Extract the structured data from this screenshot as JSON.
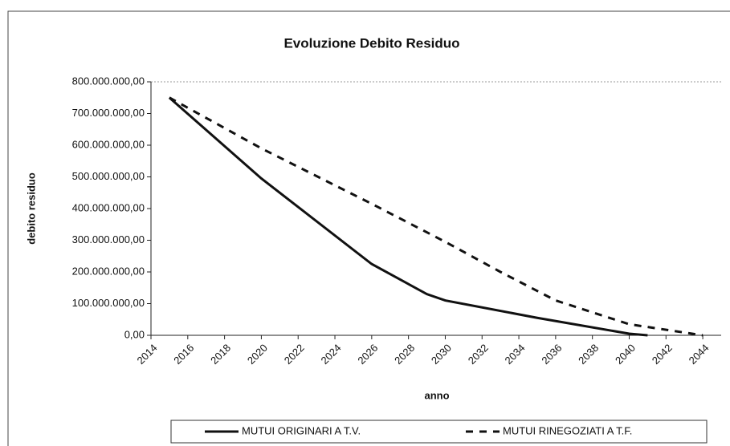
{
  "chart_data": {
    "type": "line",
    "title": "Evoluzione Debito Residuo",
    "x_label": "anno",
    "y_label": "debito residuo",
    "xlim": [
      2014,
      2045
    ],
    "xticks": [
      2014,
      2016,
      2018,
      2020,
      2022,
      2024,
      2026,
      2028,
      2030,
      2032,
      2034,
      2036,
      2038,
      2040,
      2042,
      2044
    ],
    "ylim": [
      0,
      800000000
    ],
    "yticks": [
      {
        "value": 0,
        "label": "0,00"
      },
      {
        "value": 100000000,
        "label": "100.000.000,00"
      },
      {
        "value": 200000000,
        "label": "200.000.000,00"
      },
      {
        "value": 300000000,
        "label": "300.000.000,00"
      },
      {
        "value": 400000000,
        "label": "400.000.000,00"
      },
      {
        "value": 500000000,
        "label": "500.000.000,00"
      },
      {
        "value": 600000000,
        "label": "600.000.000,00"
      },
      {
        "value": 700000000,
        "label": "700.000.000,00"
      },
      {
        "value": 800000000,
        "label": "800.000.000,00"
      }
    ],
    "grid": false,
    "legend": "bottom",
    "series": [
      {
        "name": "MUTUI ORIGINARI A T.V.",
        "color": "#111111",
        "style": "solid",
        "x": [
          2015,
          2020,
          2026,
          2029,
          2030,
          2035,
          2040,
          2041
        ],
        "values": [
          750000000,
          495000000,
          225000000,
          130000000,
          110000000,
          55000000,
          5000000,
          0
        ]
      },
      {
        "name": "MUTUI RINEGOZIATI A T.F.",
        "color": "#111111",
        "style": "dashed",
        "x": [
          2015,
          2020,
          2026,
          2030,
          2033,
          2036,
          2040,
          2044
        ],
        "values": [
          750000000,
          590000000,
          415000000,
          295000000,
          200000000,
          110000000,
          35000000,
          0
        ]
      }
    ]
  }
}
